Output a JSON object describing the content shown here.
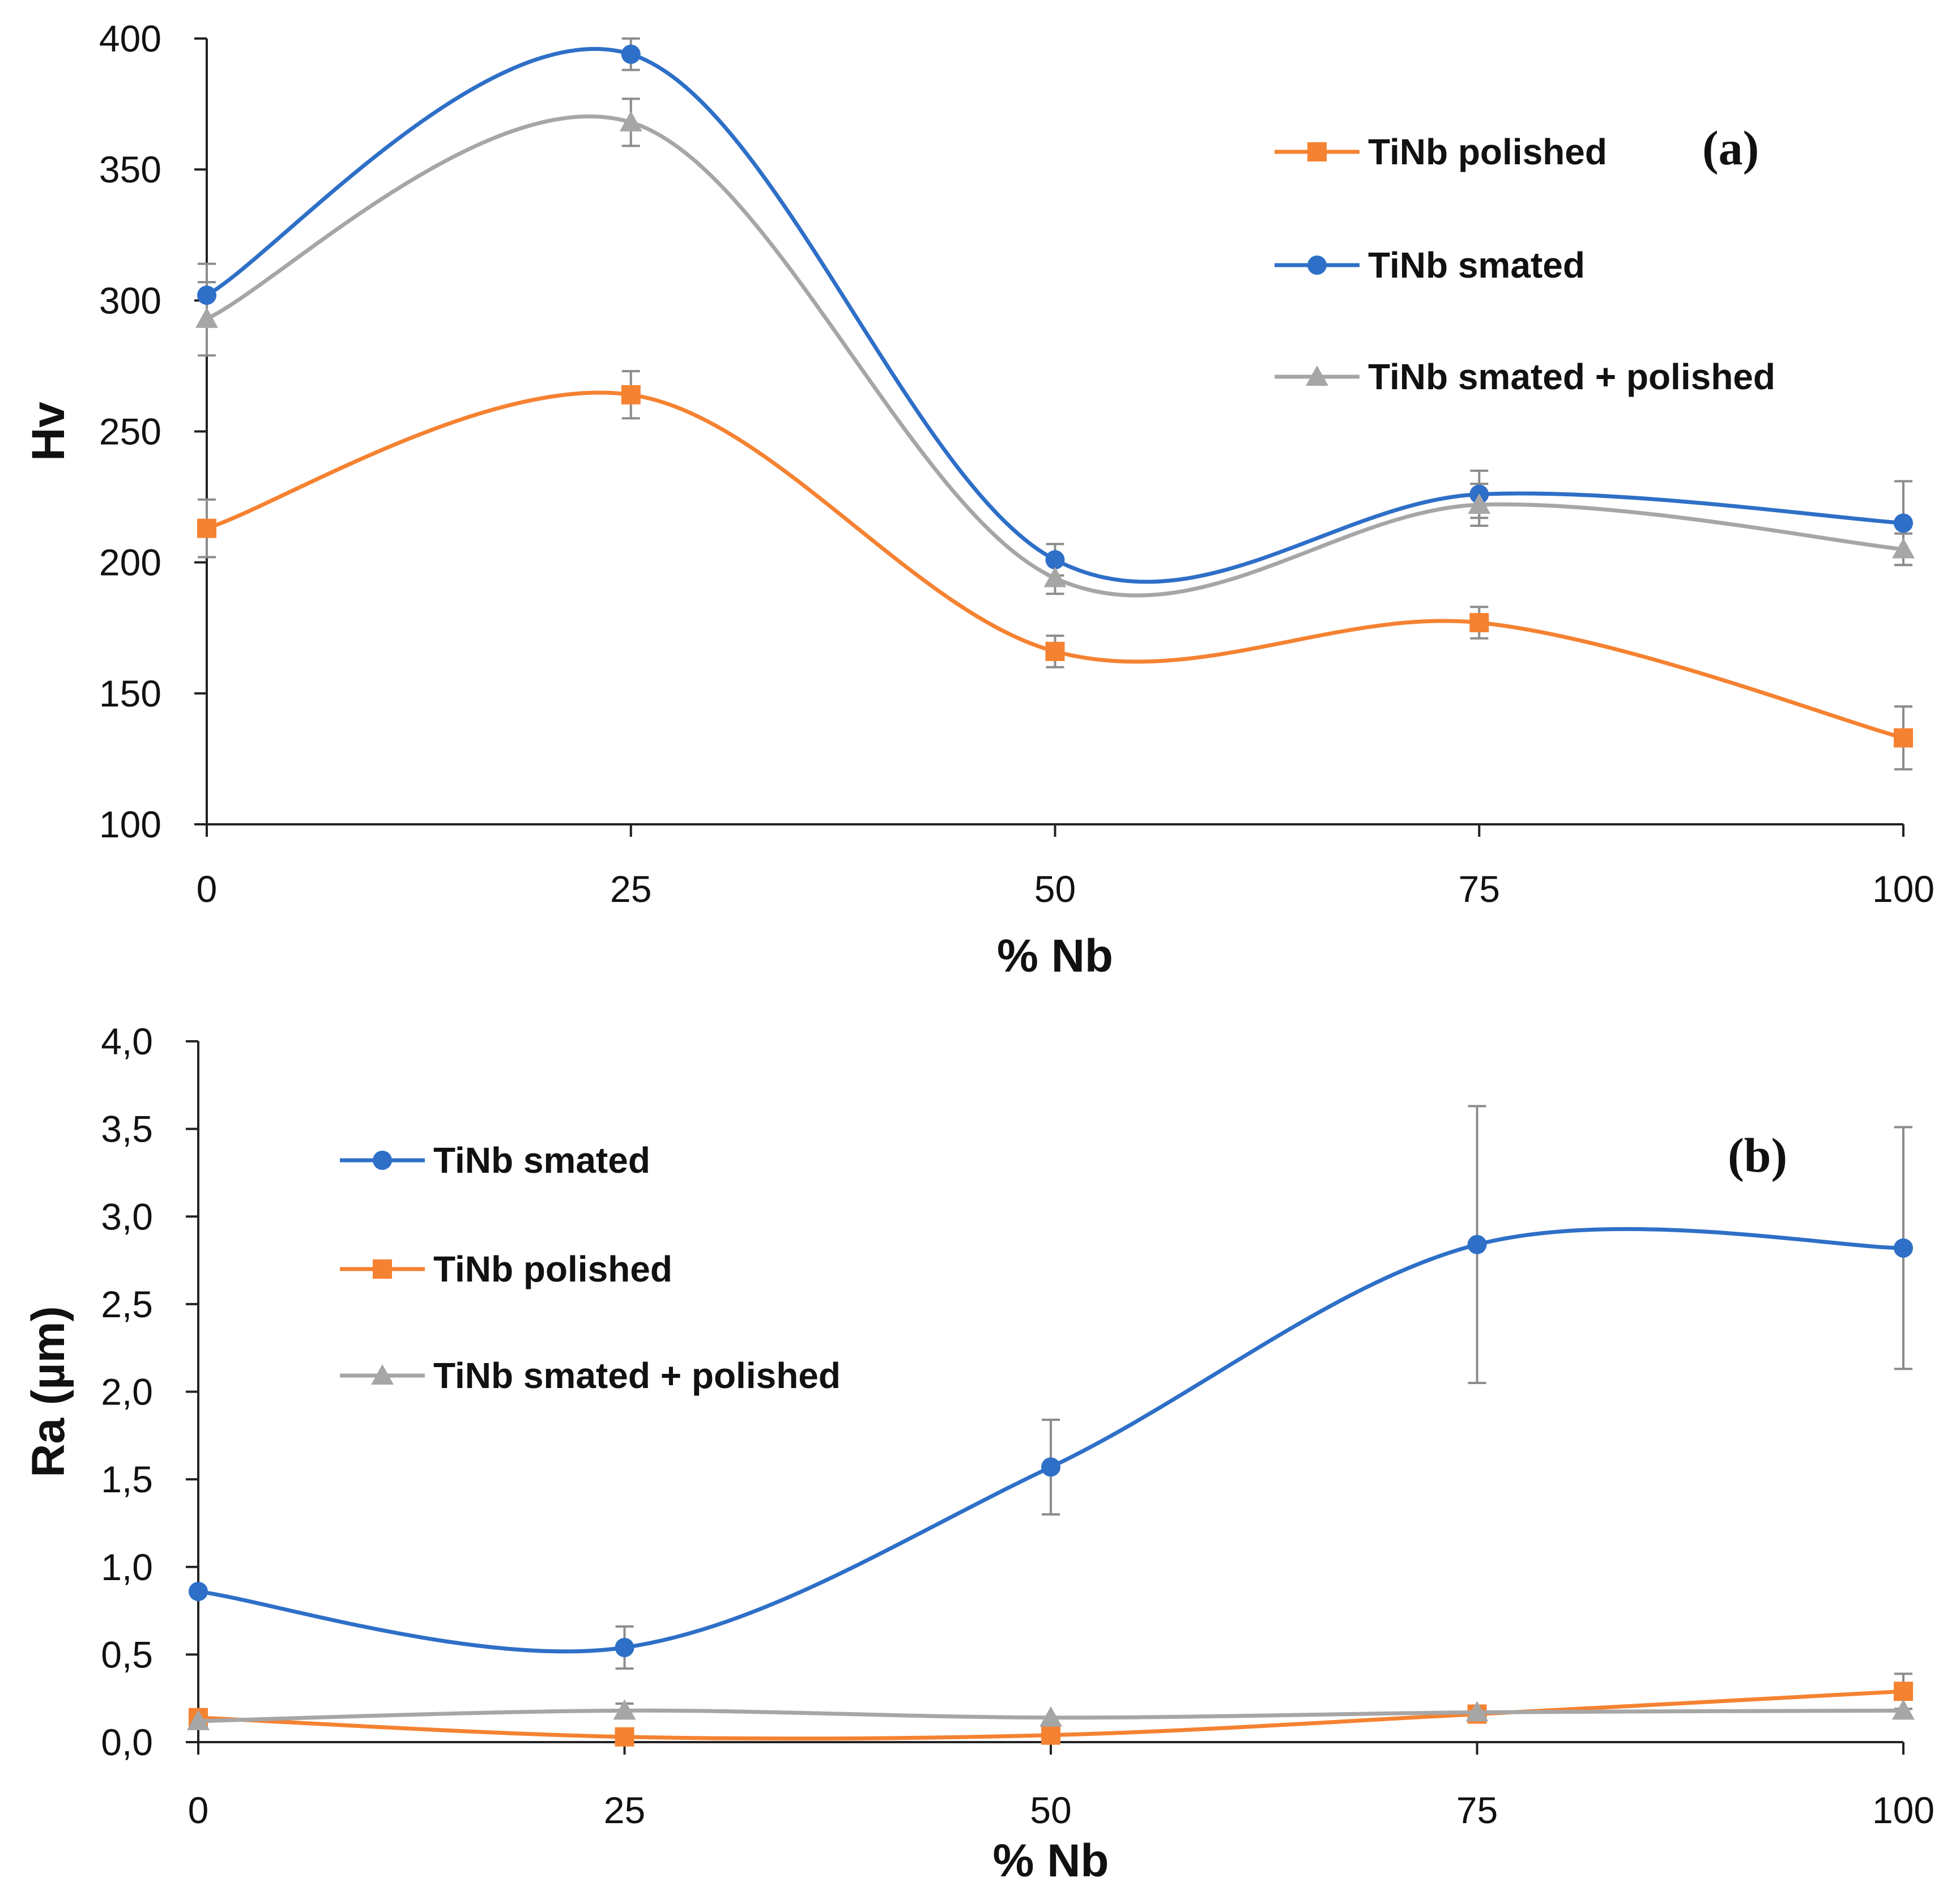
{
  "colors": {
    "polished": "#f58231",
    "smated": "#2e6fc7",
    "smated_polished": "#a6a6a6",
    "errorbar": "#8c8c8c",
    "axis": "#222222"
  },
  "chart_data": [
    {
      "type": "line",
      "panel_label": "(a)",
      "title": "",
      "xlabel": "% Nb",
      "ylabel": "Hv",
      "x": [
        0,
        25,
        50,
        75,
        100
      ],
      "x_tick_labels": [
        "0",
        "25",
        "50",
        "75",
        "100"
      ],
      "xlim": [
        0,
        100
      ],
      "ylim": [
        100,
        400
      ],
      "y_ticks": [
        100,
        150,
        200,
        250,
        300,
        350,
        400
      ],
      "y_tick_labels": [
        "100",
        "150",
        "200",
        "250",
        "300",
        "350",
        "400"
      ],
      "grid": false,
      "legend_position": "top-right",
      "series": [
        {
          "name": "TiNb polished",
          "color_key": "polished",
          "marker": "square",
          "values": [
            213,
            264,
            166,
            177,
            133
          ],
          "errors": [
            11,
            9,
            6,
            6,
            12
          ]
        },
        {
          "name": "TiNb smated",
          "color_key": "smated",
          "marker": "circle",
          "values": [
            302,
            394,
            201,
            226,
            215
          ],
          "errors": [
            12,
            6,
            6,
            9,
            16
          ]
        },
        {
          "name": "TiNb smated + polished",
          "color_key": "smated_polished",
          "marker": "triangle",
          "values": [
            293,
            368,
            194,
            222,
            205
          ],
          "errors": [
            14,
            9,
            6,
            8,
            6
          ]
        }
      ]
    },
    {
      "type": "line",
      "panel_label": "(b)",
      "title": "",
      "xlabel": "% Nb",
      "ylabel": "Ra (µm)",
      "x": [
        0,
        25,
        50,
        75,
        100
      ],
      "x_tick_labels": [
        "0",
        "25",
        "50",
        "75",
        "100"
      ],
      "xlim": [
        0,
        100
      ],
      "ylim": [
        0,
        4
      ],
      "y_ticks": [
        0,
        0.5,
        1,
        1.5,
        2,
        2.5,
        3,
        3.5,
        4
      ],
      "y_tick_labels": [
        "0,0",
        "0,5",
        "1,0",
        "1,5",
        "2,0",
        "2,5",
        "3,0",
        "3,5",
        "4,0"
      ],
      "grid": false,
      "legend_position": "top-left",
      "series": [
        {
          "name": "TiNb smated",
          "color_key": "smated",
          "marker": "circle",
          "values": [
            0.86,
            0.54,
            1.57,
            2.84,
            2.82
          ],
          "errors": [
            0.0,
            0.12,
            0.27,
            0.79,
            0.69
          ]
        },
        {
          "name": "TiNb polished",
          "color_key": "polished",
          "marker": "square",
          "values": [
            0.14,
            0.03,
            0.04,
            0.16,
            0.29
          ],
          "errors": [
            0.0,
            0.0,
            0.0,
            0.0,
            0.1
          ]
        },
        {
          "name": "TiNb smated + polished",
          "color_key": "smated_polished",
          "marker": "triangle",
          "values": [
            0.12,
            0.18,
            0.14,
            0.17,
            0.18
          ],
          "errors": [
            0.0,
            0.04,
            0.0,
            0.03,
            0.0
          ]
        }
      ]
    }
  ]
}
